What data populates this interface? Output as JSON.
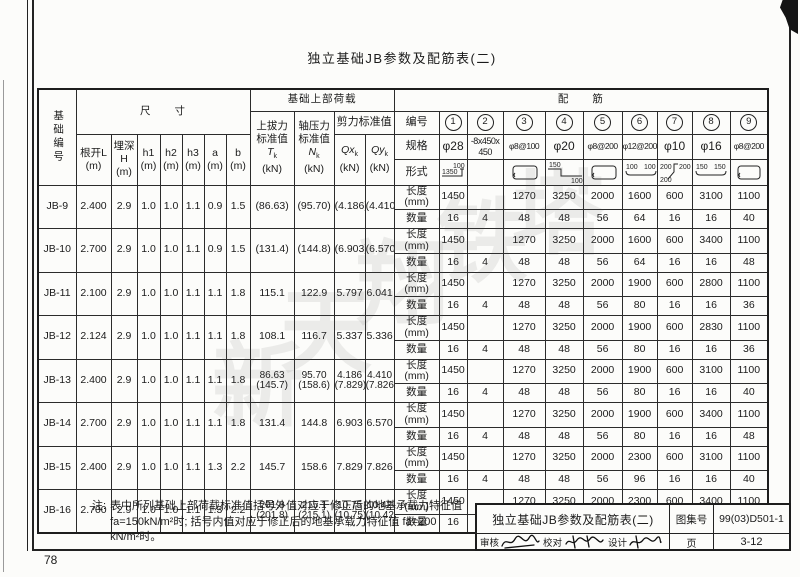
{
  "page_title": "独立基础JB参数及配筋表(二)",
  "footer_page_no": "78",
  "watermark": {
    "chars": [
      "新",
      "天",
      "翔",
      "铁",
      "塔"
    ]
  },
  "table": {
    "headers": {
      "foundation_no": "基础编号",
      "size_title": "尺　　寸",
      "size_cols": [
        "根开L",
        "埋深H",
        "h1",
        "h2",
        "h3",
        "a",
        "b"
      ],
      "unit_m": "(m)",
      "load_title": "基础上部荷载",
      "uplift_lines": [
        "上拔力",
        "标准值"
      ],
      "uplift_sym": "T",
      "axial_lines": [
        "轴压力",
        "标准值"
      ],
      "axial_sym": "N",
      "sub_k": "k",
      "shear_title": "剪力标准值",
      "qx_sym": "Qx",
      "qy_sym": "Qy",
      "unit_kn": "(kN)",
      "rebar_title": "配　　筋",
      "row_labels": {
        "number": "编号",
        "spec": "规格",
        "form": "形式",
        "length": "长度(mm)",
        "count": "数量"
      }
    },
    "rebar_cols": [
      {
        "no": "1",
        "spec": [
          "φ28"
        ],
        "form_labels": [
          "1350",
          "100"
        ]
      },
      {
        "no": "2",
        "spec": [
          "-8x450x",
          "450"
        ]
      },
      {
        "no": "3",
        "spec": [
          "φ8@100"
        ]
      },
      {
        "no": "4",
        "spec": [
          "φ20"
        ],
        "form_labels": [
          "150",
          "100"
        ]
      },
      {
        "no": "5",
        "spec": [
          "φ8@200"
        ]
      },
      {
        "no": "6",
        "spec": [
          "φ12@200"
        ],
        "form_labels": [
          "100",
          "100"
        ]
      },
      {
        "no": "7",
        "spec": [
          "φ10"
        ],
        "form_labels": [
          "200",
          "200",
          "200"
        ]
      },
      {
        "no": "8",
        "spec": [
          "φ16"
        ],
        "form_labels": [
          "150",
          "150"
        ]
      },
      {
        "no": "9",
        "spec": [
          "φ8@200"
        ]
      }
    ],
    "rows": [
      {
        "id": "JB-9",
        "dims": [
          "2.400",
          "2.9",
          "1.0",
          "1.0",
          "1.1",
          "0.9",
          "1.5"
        ],
        "tk": [
          "(86.63)"
        ],
        "nk": [
          "(95.70)"
        ],
        "qx": [
          "(4.186)"
        ],
        "qy": [
          "(4.410)"
        ],
        "len": [
          "1450",
          "",
          "1270",
          "3250",
          "2000",
          "1600",
          "600",
          "3100",
          "1100"
        ],
        "qty": [
          "16",
          "4",
          "48",
          "48",
          "56",
          "64",
          "16",
          "16",
          "40"
        ]
      },
      {
        "id": "JB-10",
        "dims": [
          "2.700",
          "2.9",
          "1.0",
          "1.0",
          "1.1",
          "0.9",
          "1.5"
        ],
        "tk": [
          "(131.4)"
        ],
        "nk": [
          "(144.8)"
        ],
        "qx": [
          "(6.903)"
        ],
        "qy": [
          "(6.570)"
        ],
        "len": [
          "1450",
          "",
          "1270",
          "3250",
          "2000",
          "1600",
          "600",
          "3400",
          "1100"
        ],
        "qty": [
          "16",
          "4",
          "48",
          "48",
          "56",
          "64",
          "16",
          "16",
          "48"
        ]
      },
      {
        "id": "JB-11",
        "dims": [
          "2.100",
          "2.9",
          "1.0",
          "1.0",
          "1.1",
          "1.1",
          "1.8"
        ],
        "tk": [
          "115.1"
        ],
        "nk": [
          "122.9"
        ],
        "qx": [
          "5.797"
        ],
        "qy": [
          "6.041"
        ],
        "len": [
          "1450",
          "",
          "1270",
          "3250",
          "2000",
          "1900",
          "600",
          "2800",
          "1100"
        ],
        "qty": [
          "16",
          "4",
          "48",
          "48",
          "56",
          "80",
          "16",
          "16",
          "36"
        ]
      },
      {
        "id": "JB-12",
        "dims": [
          "2.124",
          "2.9",
          "1.0",
          "1.0",
          "1.1",
          "1.1",
          "1.8"
        ],
        "tk": [
          "108.1"
        ],
        "nk": [
          "116.7"
        ],
        "qx": [
          "5.337"
        ],
        "qy": [
          "5.336"
        ],
        "len": [
          "1450",
          "",
          "1270",
          "3250",
          "2000",
          "1900",
          "600",
          "2830",
          "1100"
        ],
        "qty": [
          "16",
          "4",
          "48",
          "48",
          "56",
          "80",
          "16",
          "16",
          "36"
        ]
      },
      {
        "id": "JB-13",
        "dims": [
          "2.400",
          "2.9",
          "1.0",
          "1.0",
          "1.1",
          "1.1",
          "1.8"
        ],
        "tk": [
          "86.63",
          "(145.7)"
        ],
        "nk": [
          "95.70",
          "(158.6)"
        ],
        "qx": [
          "4.186",
          "(7.829)"
        ],
        "qy": [
          "4.410",
          "(7.826)"
        ],
        "len": [
          "1450",
          "",
          "1270",
          "3250",
          "2000",
          "1900",
          "600",
          "3100",
          "1100"
        ],
        "qty": [
          "16",
          "4",
          "48",
          "48",
          "56",
          "80",
          "16",
          "16",
          "40"
        ]
      },
      {
        "id": "JB-14",
        "dims": [
          "2.700",
          "2.9",
          "1.0",
          "1.0",
          "1.1",
          "1.1",
          "1.8"
        ],
        "tk": [
          "131.4"
        ],
        "nk": [
          "144.8"
        ],
        "qx": [
          "6.903"
        ],
        "qy": [
          "6.570"
        ],
        "len": [
          "1450",
          "",
          "1270",
          "3250",
          "2000",
          "1900",
          "600",
          "3400",
          "1100"
        ],
        "qty": [
          "16",
          "4",
          "48",
          "48",
          "56",
          "80",
          "16",
          "16",
          "48"
        ]
      },
      {
        "id": "JB-15",
        "dims": [
          "2.400",
          "2.9",
          "1.0",
          "1.0",
          "1.1",
          "1.3",
          "2.2"
        ],
        "tk": [
          "145.7"
        ],
        "nk": [
          "158.6"
        ],
        "qx": [
          "7.829"
        ],
        "qy": [
          "7.826"
        ],
        "len": [
          "1450",
          "",
          "1270",
          "3250",
          "2000",
          "2300",
          "600",
          "3100",
          "1100"
        ],
        "qty": [
          "16",
          "4",
          "48",
          "48",
          "56",
          "96",
          "16",
          "16",
          "40"
        ]
      },
      {
        "id": "JB-16",
        "dims": [
          "2.700",
          "2.9",
          "1.0",
          "1.0",
          "1.1",
          "1.3",
          "2.2"
        ],
        "tk": [
          "201.8",
          "(201.8)"
        ],
        "nk": [
          "215.1",
          "(215.1)"
        ],
        "qx": [
          "10.75",
          "(10.75)"
        ],
        "qy": [
          "10.42",
          "(10.42)"
        ],
        "len": [
          "1450",
          "",
          "1270",
          "3250",
          "2000",
          "2300",
          "600",
          "3400",
          "1100"
        ],
        "qty": [
          "16",
          "4",
          "48",
          "48",
          "56",
          "96",
          "16",
          "16",
          "48"
        ]
      }
    ]
  },
  "note": {
    "prefix": "注:",
    "lines": [
      "表中所列基础上部荷载标准值括号外值对应于修正后的地基承载力特征值",
      "fa=150kN/m²时; 括号内值对应于修正后的地基承载力特征值 fa=200",
      "kN/m²时。"
    ]
  },
  "title_block": {
    "title": "独立基础JB参数及配筋表(二)",
    "atlas_label": "图集号",
    "atlas_no": "99(03)D501-1",
    "review_label": "审核",
    "proof_label": "校对",
    "design_label": "设计",
    "page_label": "页",
    "page_no": "3-12"
  }
}
